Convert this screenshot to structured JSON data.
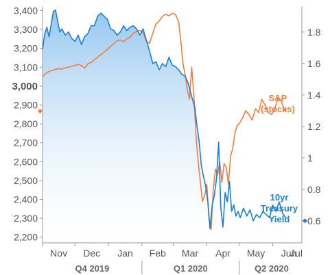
{
  "chart_data": {
    "type": "line",
    "left_axis": {
      "ylim": [
        2170,
        3420
      ],
      "ticks": [
        {
          "value": 3400,
          "label": "3,400"
        },
        {
          "value": 3300,
          "label": "3,300"
        },
        {
          "value": 3200,
          "label": "3,200"
        },
        {
          "value": 3100,
          "label": "3,100"
        },
        {
          "value": 3000,
          "label": "3,000",
          "bold": true
        },
        {
          "value": 2900,
          "label": "2,900"
        },
        {
          "value": 2800,
          "label": "2,800"
        },
        {
          "value": 2700,
          "label": "2,700"
        },
        {
          "value": 2600,
          "label": "2,600"
        },
        {
          "value": 2500,
          "label": "2,500"
        },
        {
          "value": 2400,
          "label": "2,400"
        },
        {
          "value": 2300,
          "label": "2,300"
        },
        {
          "value": 2200,
          "label": "2,200"
        }
      ],
      "marker_value": 2868,
      "marker_color": "#f47c3c"
    },
    "right_axis": {
      "ylim": [
        0.46,
        1.96
      ],
      "ticks": [
        {
          "value": 1.8,
          "label": "1.8"
        },
        {
          "value": 1.6,
          "label": "1.6"
        },
        {
          "value": 1.4,
          "label": "1.4"
        },
        {
          "value": 1.2,
          "label": "1.2"
        },
        {
          "value": 1.0,
          "label": "1"
        },
        {
          "value": 0.8,
          "label": "0.8"
        },
        {
          "value": 0.6,
          "label": "0.6"
        }
      ],
      "marker_value": 0.6,
      "marker_color": "#1a7fd6"
    },
    "x_axis": {
      "month_labels": [
        "Nov",
        "Dec",
        "Jan",
        "Feb",
        "Mar",
        "Apr",
        "May",
        "Jun",
        "Jul"
      ],
      "quarter_labels": [
        "Q4 2019",
        "Q1 2020",
        "Q2 2020"
      ]
    },
    "series": [
      {
        "name": "S&P (stocks)",
        "axis": "left",
        "color": "#f47c3c",
        "values": [
          [
            0,
            3050
          ],
          [
            3,
            3066
          ],
          [
            6,
            3078
          ],
          [
            9,
            3083
          ],
          [
            12,
            3089
          ],
          [
            15,
            3093
          ],
          [
            18,
            3090
          ],
          [
            21,
            3097
          ],
          [
            24,
            3100
          ],
          [
            27,
            3105
          ],
          [
            30,
            3110
          ],
          [
            33,
            3115
          ],
          [
            36,
            3110
          ],
          [
            39,
            3095
          ],
          [
            42,
            3118
          ],
          [
            45,
            3125
          ],
          [
            48,
            3140
          ],
          [
            51,
            3153
          ],
          [
            54,
            3168
          ],
          [
            57,
            3180
          ],
          [
            60,
            3195
          ],
          [
            63,
            3210
          ],
          [
            66,
            3225
          ],
          [
            69,
            3240
          ],
          [
            72,
            3245
          ],
          [
            75,
            3235
          ],
          [
            78,
            3250
          ],
          [
            81,
            3260
          ],
          [
            84,
            3280
          ],
          [
            87,
            3290
          ],
          [
            90,
            3295
          ],
          [
            93,
            3283
          ],
          [
            96,
            3240
          ],
          [
            99,
            3225
          ],
          [
            102,
            3280
          ],
          [
            105,
            3330
          ],
          [
            108,
            3345
          ],
          [
            111,
            3370
          ],
          [
            114,
            3380
          ],
          [
            117,
            3372
          ],
          [
            120,
            3386
          ],
          [
            123,
            3380
          ],
          [
            126,
            3340
          ],
          [
            128,
            3240
          ],
          [
            130,
            3120
          ],
          [
            132,
            3060
          ],
          [
            134,
            2980
          ],
          [
            136,
            2930
          ],
          [
            138,
            3100
          ],
          [
            140,
            2960
          ],
          [
            142,
            2740
          ],
          [
            144,
            2600
          ],
          [
            146,
            2500
          ],
          [
            148,
            2390
          ],
          [
            150,
            2420
          ],
          [
            152,
            2480
          ],
          [
            154,
            2300
          ],
          [
            156,
            2240
          ],
          [
            158,
            2450
          ],
          [
            160,
            2560
          ],
          [
            162,
            2530
          ],
          [
            164,
            2600
          ],
          [
            166,
            2490
          ],
          [
            168,
            2590
          ],
          [
            170,
            2570
          ],
          [
            172,
            2480
          ],
          [
            174,
            2630
          ],
          [
            176,
            2670
          ],
          [
            178,
            2750
          ],
          [
            180,
            2790
          ],
          [
            182,
            2800
          ],
          [
            185,
            2830
          ],
          [
            188,
            2870
          ],
          [
            191,
            2850
          ],
          [
            194,
            2820
          ],
          [
            197,
            2880
          ],
          [
            200,
            2860
          ],
          [
            203,
            2930
          ],
          [
            206,
            2900
          ],
          [
            209,
            2860
          ],
          [
            212,
            2850
          ],
          [
            215,
            2880
          ],
          [
            218,
            2940
          ],
          [
            221,
            2920
          ],
          [
            224,
            2870
          ],
          [
            226,
            2880
          ]
        ]
      },
      {
        "name": "10yr Treasury Yield",
        "axis": "right",
        "color": "#1a7fd6",
        "values": [
          [
            0,
            1.69
          ],
          [
            2,
            1.79
          ],
          [
            4,
            1.83
          ],
          [
            6,
            1.77
          ],
          [
            8,
            1.85
          ],
          [
            10,
            1.93
          ],
          [
            12,
            1.94
          ],
          [
            14,
            1.87
          ],
          [
            16,
            1.8
          ],
          [
            18,
            1.82
          ],
          [
            21,
            1.78
          ],
          [
            24,
            1.8
          ],
          [
            27,
            1.76
          ],
          [
            30,
            1.74
          ],
          [
            33,
            1.78
          ],
          [
            36,
            1.72
          ],
          [
            39,
            1.77
          ],
          [
            42,
            1.79
          ],
          [
            45,
            1.84
          ],
          [
            48,
            1.84
          ],
          [
            51,
            1.9
          ],
          [
            54,
            1.92
          ],
          [
            57,
            1.9
          ],
          [
            60,
            1.88
          ],
          [
            63,
            1.82
          ],
          [
            66,
            1.81
          ],
          [
            69,
            1.78
          ],
          [
            72,
            1.8
          ],
          [
            75,
            1.84
          ],
          [
            78,
            1.81
          ],
          [
            81,
            1.83
          ],
          [
            84,
            1.84
          ],
          [
            87,
            1.82
          ],
          [
            90,
            1.78
          ],
          [
            93,
            1.82
          ],
          [
            96,
            1.75
          ],
          [
            99,
            1.68
          ],
          [
            102,
            1.6
          ],
          [
            105,
            1.61
          ],
          [
            108,
            1.56
          ],
          [
            111,
            1.6
          ],
          [
            114,
            1.58
          ],
          [
            117,
            1.64
          ],
          [
            120,
            1.59
          ],
          [
            123,
            1.58
          ],
          [
            126,
            1.56
          ],
          [
            129,
            1.53
          ],
          [
            132,
            1.52
          ],
          [
            135,
            1.47
          ],
          [
            138,
            1.39
          ],
          [
            141,
            1.32
          ],
          [
            143,
            1.2
          ],
          [
            145,
            1.1
          ],
          [
            147,
            0.95
          ],
          [
            149,
            0.88
          ],
          [
            151,
            0.82
          ],
          [
            153,
            0.72
          ],
          [
            155,
            0.55
          ],
          [
            157,
            0.7
          ],
          [
            159,
            0.76
          ],
          [
            161,
            0.87
          ],
          [
            163,
            1.1
          ],
          [
            165,
            0.68
          ],
          [
            167,
            0.56
          ],
          [
            169,
            0.78
          ],
          [
            171,
            0.72
          ],
          [
            173,
            0.85
          ],
          [
            175,
            0.66
          ],
          [
            177,
            0.7
          ],
          [
            179,
            0.63
          ],
          [
            181,
            0.66
          ],
          [
            183,
            0.62
          ],
          [
            186,
            0.68
          ],
          [
            189,
            0.63
          ],
          [
            192,
            0.67
          ],
          [
            195,
            0.6
          ],
          [
            198,
            0.64
          ],
          [
            201,
            0.62
          ],
          [
            204,
            0.66
          ],
          [
            207,
            0.64
          ],
          [
            210,
            0.62
          ],
          [
            213,
            0.7
          ],
          [
            216,
            0.66
          ],
          [
            219,
            0.72
          ],
          [
            222,
            0.65
          ],
          [
            225,
            0.62
          ]
        ]
      }
    ]
  }
}
